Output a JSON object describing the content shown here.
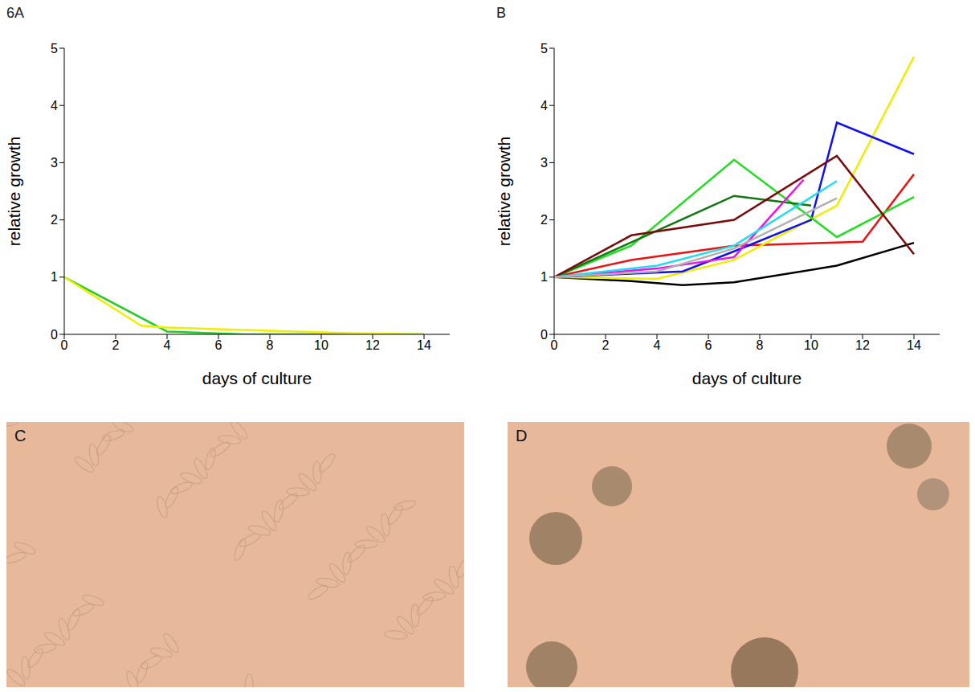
{
  "chart_data": [
    {
      "type": "line",
      "title": "6A",
      "xlabel": "days of culture",
      "ylabel": "relative growth",
      "xlim": [
        0,
        15
      ],
      "xticks": [
        0,
        2,
        4,
        6,
        8,
        10,
        12,
        14
      ],
      "ylim": [
        0,
        5
      ],
      "yticks": [
        0,
        1,
        2,
        3,
        4,
        5
      ],
      "grid": false,
      "series": [
        {
          "color": "#22cc22",
          "x": [
            0,
            4,
            7,
            11,
            14
          ],
          "values": [
            1,
            0.05,
            0,
            0,
            0
          ]
        },
        {
          "color": "#eeee00",
          "x": [
            0,
            3,
            4,
            11,
            14
          ],
          "values": [
            1,
            0.15,
            0.12,
            0.02,
            0
          ]
        }
      ]
    },
    {
      "type": "line",
      "title": "B",
      "xlabel": "days of culture",
      "ylabel": "relative growth",
      "xlim": [
        0,
        15
      ],
      "xticks": [
        0,
        2,
        4,
        6,
        8,
        10,
        12,
        14
      ],
      "ylim": [
        0,
        5
      ],
      "yticks": [
        0,
        1,
        2,
        3,
        4,
        5
      ],
      "grid": false,
      "series": [
        {
          "color": "#000000",
          "x": [
            0,
            3,
            5,
            7,
            11,
            14
          ],
          "values": [
            1,
            0.93,
            0.86,
            0.91,
            1.2,
            1.6
          ]
        },
        {
          "color": "#ee1111",
          "x": [
            0,
            3,
            7,
            12,
            14
          ],
          "values": [
            1,
            1.3,
            1.55,
            1.62,
            2.8
          ]
        },
        {
          "color": "#eeee00",
          "x": [
            0,
            4,
            7,
            11,
            14
          ],
          "values": [
            1,
            0.97,
            1.3,
            2.25,
            4.85
          ]
        },
        {
          "color": "#1111ee",
          "x": [
            0,
            5,
            7,
            10,
            11,
            14
          ],
          "values": [
            1,
            1.1,
            1.45,
            2.0,
            3.7,
            3.15
          ]
        },
        {
          "color": "#22dd22",
          "x": [
            0,
            3,
            7,
            11,
            14
          ],
          "values": [
            1,
            1.55,
            3.05,
            1.7,
            2.4
          ]
        },
        {
          "color": "#117711",
          "x": [
            0,
            7,
            10
          ],
          "values": [
            1,
            2.42,
            2.25
          ]
        },
        {
          "color": "#7a0a0a",
          "x": [
            0,
            3,
            7,
            11,
            14
          ],
          "values": [
            1,
            1.73,
            2.0,
            3.12,
            1.4
          ]
        },
        {
          "color": "#ee11ee",
          "x": [
            0,
            4,
            7,
            9.7
          ],
          "values": [
            1,
            1.15,
            1.35,
            2.7
          ]
        },
        {
          "color": "#22ddee",
          "x": [
            0,
            4,
            7,
            11
          ],
          "values": [
            1,
            1.2,
            1.55,
            2.68
          ]
        },
        {
          "color": "#b0b0b0",
          "x": [
            0,
            4,
            7,
            11
          ],
          "values": [
            1,
            1.1,
            1.5,
            2.38
          ]
        }
      ]
    }
  ],
  "images": [
    {
      "label": "C"
    },
    {
      "label": "D"
    }
  ]
}
